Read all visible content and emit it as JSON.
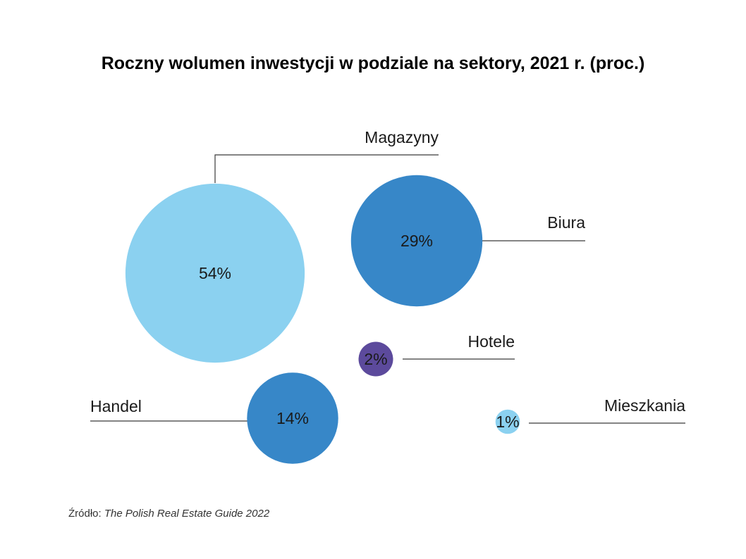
{
  "chart_data": {
    "type": "bubble",
    "title": "Roczny wolumen inwestycji w podziale na sektory, 2021 r. (proc.)",
    "unit": "%",
    "series": [
      {
        "category": "Magazyny",
        "value": 54,
        "label": "54%",
        "color": "#8bd1f0"
      },
      {
        "category": "Biura",
        "value": 29,
        "label": "29%",
        "color": "#3787c8"
      },
      {
        "category": "Hotele",
        "value": 2,
        "label": "2%",
        "color": "#5c4a9c"
      },
      {
        "category": "Handel",
        "value": 14,
        "label": "14%",
        "color": "#3787c8"
      },
      {
        "category": "Mieszkania",
        "value": 1,
        "label": "1%",
        "color": "#8bd1f0"
      }
    ],
    "source": {
      "prefix": "Źródło: ",
      "title": "The Polish Real Estate Guide 2022"
    }
  }
}
